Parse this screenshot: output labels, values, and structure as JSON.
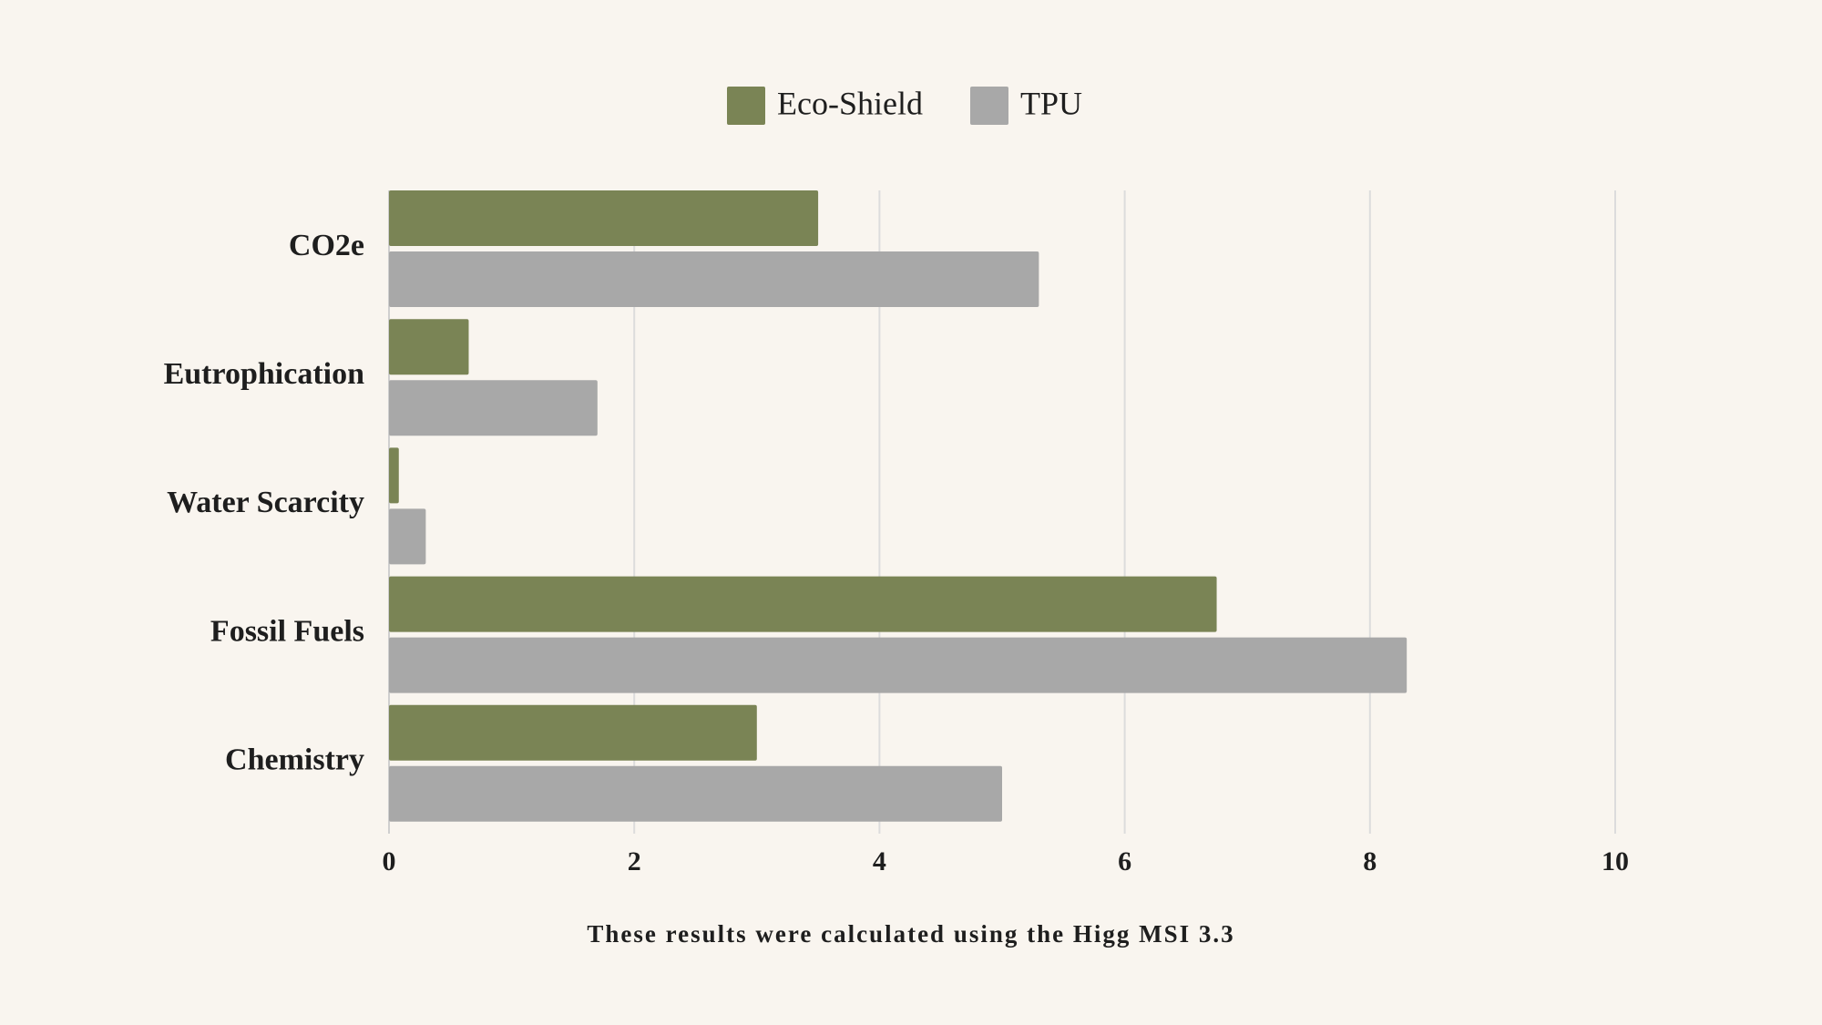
{
  "chart_data": {
    "type": "hbar",
    "categories": [
      "CO2e",
      "Eutrophication",
      "Water Scarcity",
      "Fossil Fuels",
      "Chemistry"
    ],
    "series": [
      {
        "name": "Eco-Shield",
        "color": "#7a8455",
        "values": [
          3.5,
          0.65,
          0.08,
          6.75,
          3.0
        ]
      },
      {
        "name": "TPU",
        "color": "#a8a8a8",
        "values": [
          5.3,
          1.7,
          0.3,
          8.3,
          5.0
        ]
      }
    ],
    "xlim": [
      0,
      10
    ],
    "xticks": [
      0,
      2,
      4,
      6,
      8,
      10
    ],
    "grid": true,
    "note": "These results were calculated using the Higg MSI 3.3"
  }
}
